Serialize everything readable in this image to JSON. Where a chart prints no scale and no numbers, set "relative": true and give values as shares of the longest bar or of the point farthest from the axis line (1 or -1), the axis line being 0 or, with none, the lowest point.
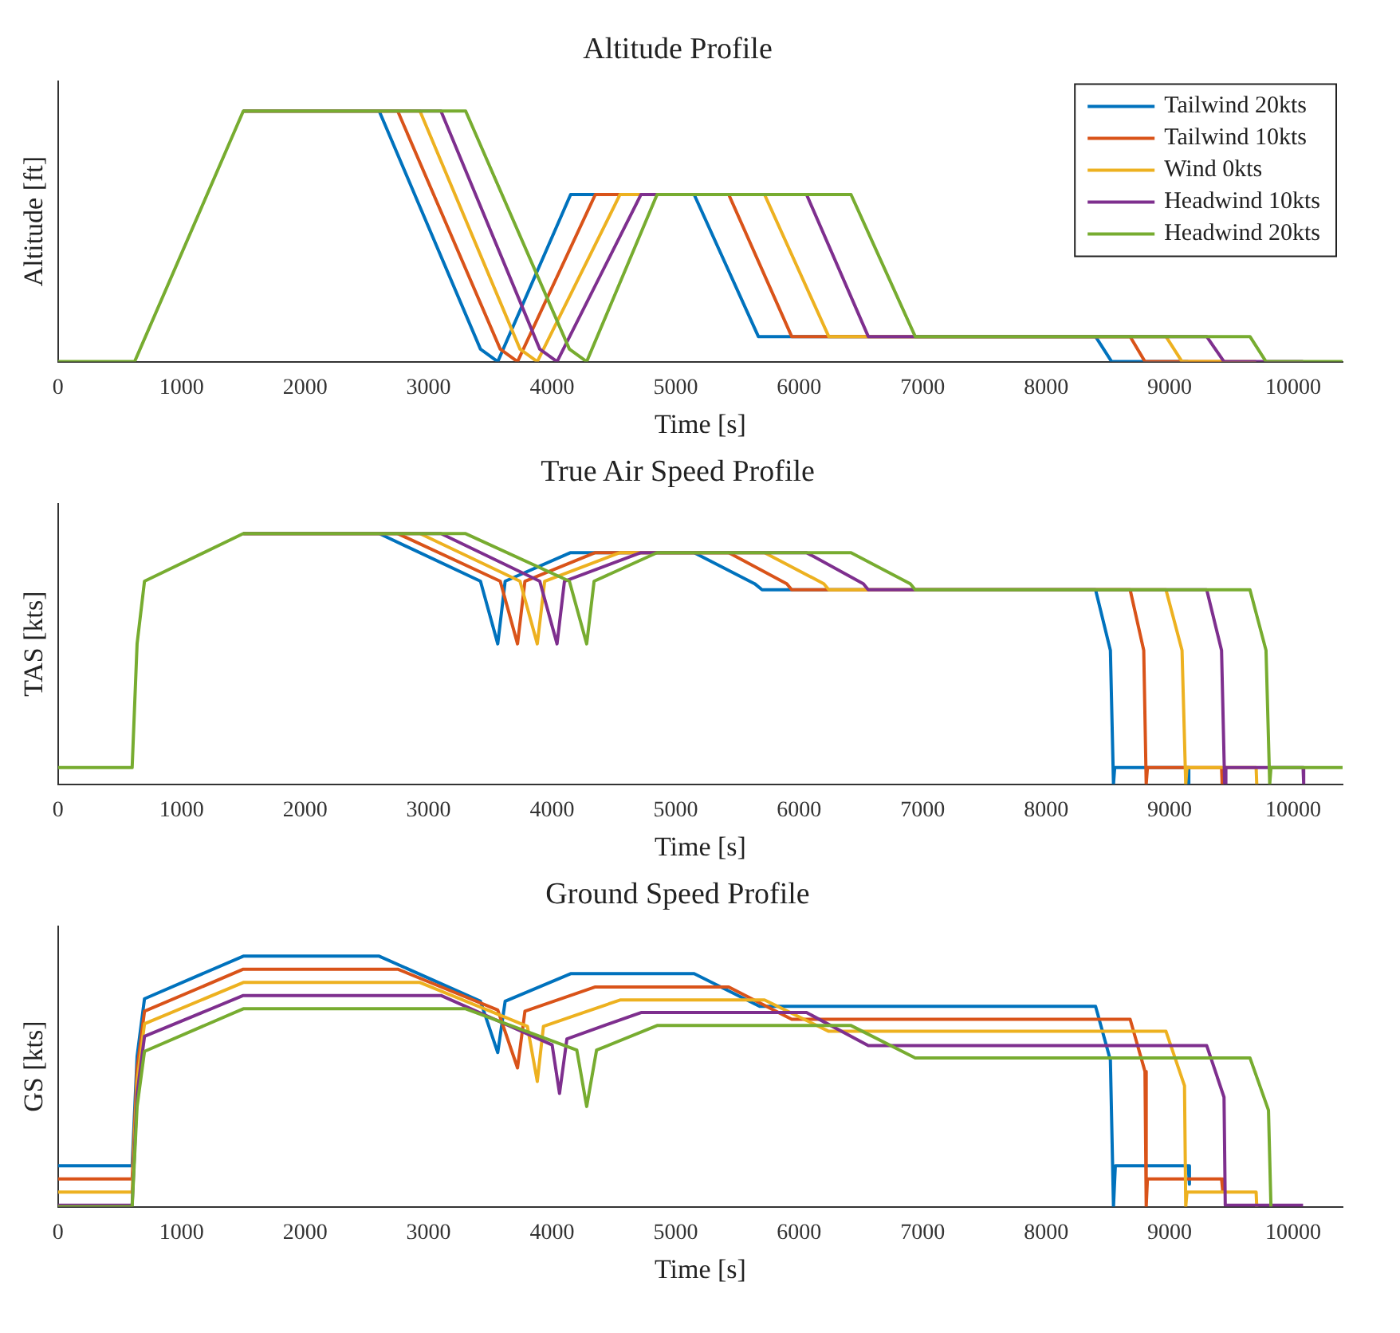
{
  "chart_data": [
    {
      "type": "line",
      "title": "Altitude Profile",
      "xlabel": "Time [s]",
      "ylabel": "Altitude [ft]",
      "relative": true,
      "xlim": [
        0,
        10400
      ],
      "xticks": [
        0,
        1000,
        2000,
        3000,
        4000,
        5000,
        6000,
        7000,
        8000,
        9000,
        10000
      ],
      "tick_labels": "x",
      "grid": false,
      "legend": "top right",
      "marker": "none",
      "line_style": "solid",
      "series": [
        {
          "name": "Tailwind 20kts",
          "color": "#0072bd",
          "x": [
            1500,
            2600,
            3420,
            3560,
            4150,
            5150,
            5670,
            8400,
            8530,
            9150
          ],
          "values": [
            1,
            1,
            0.05,
            0,
            0.667,
            0.667,
            0.1,
            0.1,
            0,
            0
          ]
        },
        {
          "name": "Tailwind 10kts",
          "color": "#d95319",
          "x": [
            1500,
            2750,
            3580,
            3720,
            4350,
            5430,
            5940,
            8680,
            8800,
            9420
          ],
          "values": [
            1,
            1,
            0.05,
            0,
            0.667,
            0.667,
            0.1,
            0.1,
            0,
            0
          ]
        },
        {
          "name": "Wind 0kts",
          "color": "#edb120",
          "x": [
            1500,
            2930,
            3740,
            3880,
            4550,
            5720,
            6240,
            8970,
            9100,
            9700
          ],
          "values": [
            1,
            1,
            0.05,
            0,
            0.667,
            0.667,
            0.1,
            0.1,
            0,
            0
          ]
        },
        {
          "name": "Headwind 10kts",
          "color": "#7e2f8e",
          "x": [
            1500,
            3100,
            3900,
            4040,
            4720,
            6060,
            6560,
            9300,
            9440,
            10080
          ],
          "values": [
            1,
            1,
            0.05,
            0,
            0.667,
            0.667,
            0.1,
            0.1,
            0,
            0
          ]
        },
        {
          "name": "Headwind 20kts",
          "color": "#77ac30",
          "x": [
            0,
            620,
            1500,
            3300,
            4140,
            4280,
            4850,
            6420,
            6940,
            9650,
            9780,
            10400
          ],
          "values": [
            0,
            0,
            1,
            1,
            0.05,
            0,
            0.667,
            0.667,
            0.1,
            0.1,
            0,
            0
          ]
        }
      ]
    },
    {
      "type": "line",
      "title": "True Air Speed Profile",
      "xlabel": "Time [s]",
      "ylabel": "TAS [kts]",
      "relative": true,
      "xlim": [
        0,
        10400
      ],
      "xticks": [
        0,
        1000,
        2000,
        3000,
        4000,
        5000,
        6000,
        7000,
        8000,
        9000,
        10000
      ],
      "tick_labels": "x",
      "grid": false,
      "marker": "none",
      "line_style": "solid",
      "series": [
        {
          "color": "#0072bd",
          "x": [
            1500,
            2600,
            3420,
            3560,
            3620,
            4150,
            5150,
            5640,
            5700,
            8400,
            8520,
            8545,
            8555,
            9150,
            9155
          ],
          "values": [
            1,
            1,
            0.81,
            0.56,
            0.81,
            0.924,
            0.924,
            0.8,
            0.776,
            0.776,
            0.534,
            0,
            0.066,
            0.066,
            0
          ]
        },
        {
          "color": "#d95319",
          "x": [
            1500,
            2750,
            3580,
            3720,
            3780,
            4350,
            5430,
            5900,
            5940,
            8680,
            8790,
            8810,
            8820,
            9420,
            9425
          ],
          "values": [
            1,
            1,
            0.81,
            0.56,
            0.81,
            0.924,
            0.924,
            0.8,
            0.776,
            0.776,
            0.534,
            0,
            0.066,
            0.066,
            0
          ]
        },
        {
          "color": "#edb120",
          "x": [
            1500,
            2930,
            3740,
            3880,
            3940,
            4550,
            5720,
            6200,
            6240,
            8970,
            9100,
            9130,
            9140,
            9700,
            9705
          ],
          "values": [
            1,
            1,
            0.81,
            0.56,
            0.81,
            0.924,
            0.924,
            0.8,
            0.776,
            0.776,
            0.534,
            0,
            0.066,
            0.066,
            0
          ]
        },
        {
          "color": "#7e2f8e",
          "x": [
            1500,
            3100,
            3900,
            4040,
            4100,
            4720,
            6060,
            6520,
            6560,
            9300,
            9420,
            9445,
            9455,
            10080,
            10085
          ],
          "values": [
            1,
            1,
            0.81,
            0.56,
            0.81,
            0.924,
            0.924,
            0.8,
            0.776,
            0.776,
            0.534,
            0,
            0.066,
            0.066,
            0
          ]
        },
        {
          "color": "#77ac30",
          "x": [
            0,
            600,
            640,
            700,
            1500,
            3300,
            4140,
            4280,
            4340,
            4850,
            6420,
            6900,
            6940,
            9650,
            9780,
            9810,
            9820,
            10400
          ],
          "values": [
            0.066,
            0.066,
            0.56,
            0.81,
            1,
            1,
            0.81,
            0.56,
            0.81,
            0.924,
            0.924,
            0.8,
            0.776,
            0.776,
            0.534,
            0,
            0.066,
            0.066
          ]
        }
      ]
    },
    {
      "type": "line",
      "title": "Ground Speed Profile",
      "xlabel": "Time [s]",
      "ylabel": "GS [kts]",
      "relative": true,
      "xlim": [
        0,
        10400
      ],
      "xticks": [
        0,
        1000,
        2000,
        3000,
        4000,
        5000,
        6000,
        7000,
        8000,
        9000,
        10000
      ],
      "tick_labels": "x",
      "grid": false,
      "marker": "none",
      "line_style": "solid",
      "series": [
        {
          "color": "#0072bd",
          "x": [
            0,
            600,
            640,
            700,
            1500,
            2600,
            3420,
            3560,
            3620,
            4150,
            5150,
            5680,
            8400,
            8520,
            8545,
            8560,
            9150,
            9160
          ],
          "values": [
            0.163,
            0.163,
            0.6,
            0.83,
            1,
            1,
            0.82,
            0.615,
            0.82,
            0.93,
            0.93,
            0.8,
            0.8,
            0.585,
            0,
            0.163,
            0.163,
            0.09
          ]
        },
        {
          "color": "#d95319",
          "x": [
            0,
            600,
            640,
            700,
            1500,
            2750,
            3560,
            3720,
            3780,
            4350,
            5430,
            5940,
            8680,
            8800,
            8810,
            8820,
            9420,
            9430
          ],
          "values": [
            0.111,
            0.111,
            0.55,
            0.78,
            0.948,
            0.948,
            0.785,
            0.554,
            0.78,
            0.877,
            0.877,
            0.748,
            0.748,
            0.54,
            0,
            0.111,
            0.111,
            0.06
          ]
        },
        {
          "color": "#edb120",
          "x": [
            0,
            600,
            640,
            700,
            1500,
            2930,
            3800,
            3880,
            3930,
            4550,
            5720,
            6240,
            8970,
            9120,
            9130,
            9140,
            9700,
            9705
          ],
          "values": [
            0.058,
            0.058,
            0.5,
            0.73,
            0.895,
            0.895,
            0.72,
            0.5,
            0.72,
            0.825,
            0.825,
            0.7,
            0.7,
            0.483,
            0,
            0.058,
            0.058,
            0
          ]
        },
        {
          "color": "#7e2f8e",
          "x": [
            0,
            600,
            640,
            700,
            1500,
            3100,
            4000,
            4060,
            4120,
            4720,
            6060,
            6560,
            9300,
            9440,
            9450,
            10080
          ],
          "values": [
            0.006,
            0.006,
            0.45,
            0.68,
            0.843,
            0.843,
            0.646,
            0.452,
            0.67,
            0.775,
            0.775,
            0.643,
            0.643,
            0.437,
            0.006,
            0.006
          ]
        },
        {
          "color": "#77ac30",
          "x": [
            0,
            600,
            640,
            700,
            1500,
            3300,
            4200,
            4280,
            4360,
            4850,
            6420,
            6940,
            9650,
            9800,
            9820
          ],
          "values": [
            0,
            0,
            0.4,
            0.62,
            0.79,
            0.79,
            0.625,
            0.4,
            0.625,
            0.723,
            0.723,
            0.594,
            0.594,
            0.385,
            0
          ]
        }
      ]
    }
  ]
}
